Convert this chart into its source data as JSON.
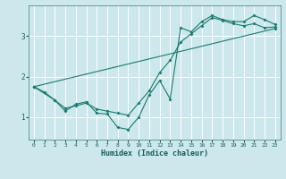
{
  "title": "",
  "xlabel": "Humidex (Indice chaleur)",
  "ylabel": "",
  "bg_color": "#cce8ec",
  "grid_color": "#ffffff",
  "line_color": "#1a7a6e",
  "xlim": [
    -0.5,
    23.5
  ],
  "ylim": [
    0.45,
    3.75
  ],
  "xticks": [
    0,
    1,
    2,
    3,
    4,
    5,
    6,
    7,
    8,
    9,
    10,
    11,
    12,
    13,
    14,
    15,
    16,
    17,
    18,
    19,
    20,
    21,
    22,
    23
  ],
  "yticks": [
    1,
    2,
    3
  ],
  "line1_x": [
    0,
    1,
    2,
    3,
    4,
    5,
    6,
    7,
    8,
    9,
    10,
    11,
    12,
    13,
    14,
    15,
    16,
    17,
    18,
    19,
    20,
    21,
    22,
    23
  ],
  "line1_y": [
    1.75,
    1.62,
    1.42,
    1.15,
    1.32,
    1.38,
    1.1,
    1.08,
    0.75,
    0.7,
    1.0,
    1.55,
    1.9,
    1.45,
    3.2,
    3.1,
    3.35,
    3.5,
    3.4,
    3.35,
    3.35,
    3.5,
    3.4,
    3.28
  ],
  "line2_x": [
    0,
    2,
    3,
    4,
    5,
    6,
    7,
    8,
    9,
    10,
    11,
    12,
    13,
    14,
    15,
    16,
    17,
    18,
    19,
    20,
    21,
    22,
    23
  ],
  "line2_y": [
    1.75,
    1.42,
    1.22,
    1.28,
    1.35,
    1.2,
    1.15,
    1.1,
    1.05,
    1.35,
    1.65,
    2.1,
    2.4,
    2.85,
    3.05,
    3.25,
    3.45,
    3.38,
    3.3,
    3.25,
    3.3,
    3.2,
    3.22
  ],
  "line3_x": [
    0,
    23
  ],
  "line3_y": [
    1.75,
    3.18
  ]
}
